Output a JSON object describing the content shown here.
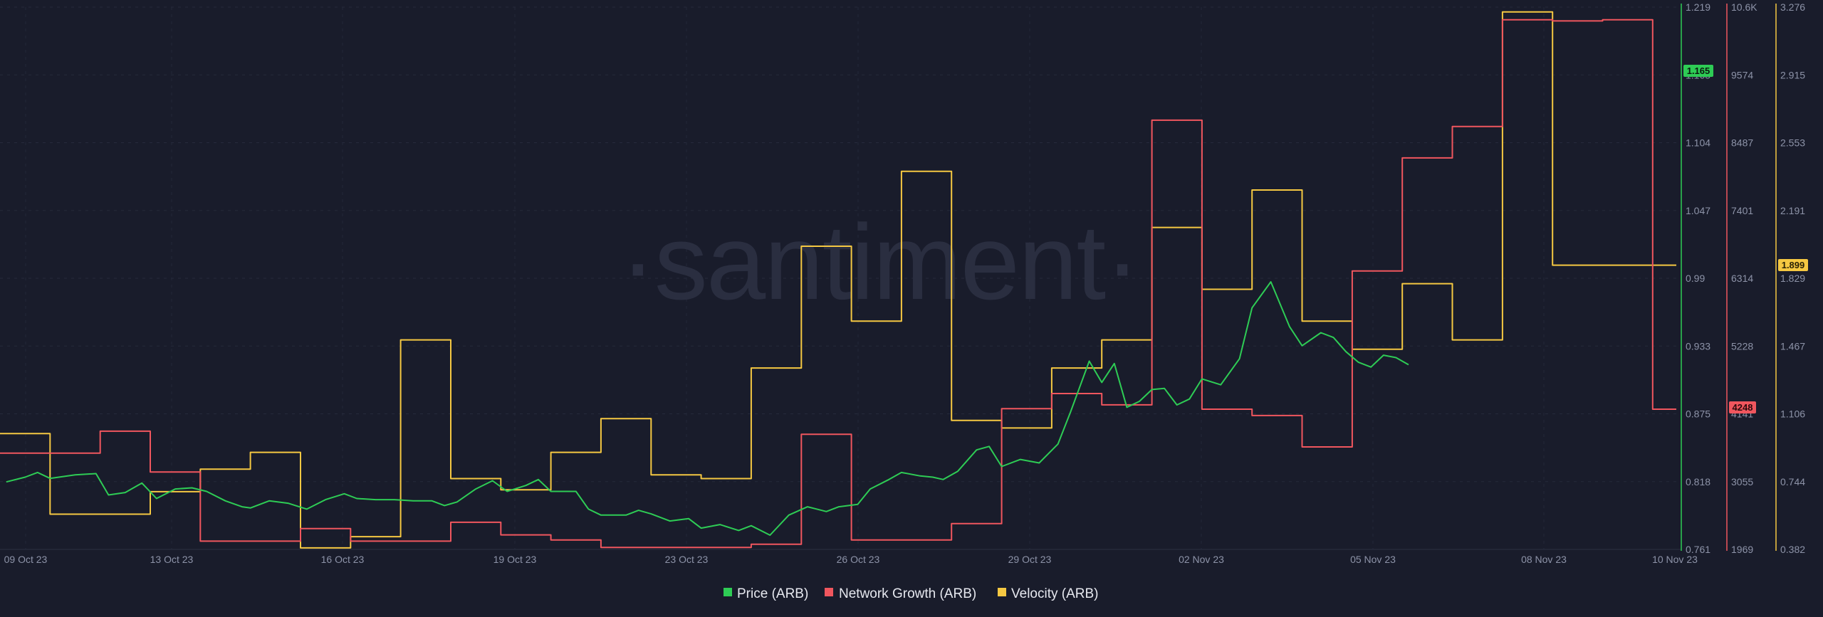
{
  "watermark": "·santiment·",
  "chart_data": {
    "type": "line",
    "x_tick_labels": [
      "09 Oct 23",
      "13 Oct 23",
      "16 Oct 23",
      "19 Oct 23",
      "23 Oct 23",
      "26 Oct 23",
      "29 Oct 23",
      "02 Nov 23",
      "05 Nov 23",
      "08 Nov 23",
      "10 Nov 23"
    ],
    "grid": true,
    "legend_position": "bottom-center",
    "x_range": [
      "2023-10-08",
      "2023-11-10"
    ],
    "axes": {
      "price": {
        "ticks": [
          "1.219",
          "1.165",
          "1.104",
          "1.047",
          "0.99",
          "0.933",
          "0.875",
          "0.818",
          "0.761"
        ],
        "min": 0.761,
        "max": 1.219,
        "color": "#2ecc55"
      },
      "network": {
        "ticks": [
          "10.6K",
          "9574",
          "8487",
          "7401",
          "6314",
          "5228",
          "4141",
          "3055",
          "1969"
        ],
        "min": 1969,
        "max": 10600,
        "color": "#f0565e"
      },
      "velocity": {
        "ticks": [
          "3.276",
          "2.915",
          "2.553",
          "2.191",
          "1.829",
          "1.467",
          "1.106",
          "0.744",
          "0.382"
        ],
        "min": 0.382,
        "max": 3.276,
        "color": "#f5c842"
      }
    },
    "last_values": {
      "price": "1.165",
      "network": "4248",
      "velocity": "1.899"
    },
    "series": [
      {
        "name": "Price (ARB)",
        "axis": "price",
        "color": "#2ecc55",
        "step": false,
        "points": [
          [
            "2023-10-08T03:00",
            0.818
          ],
          [
            "2023-10-08T12:00",
            0.822
          ],
          [
            "2023-10-08T18:00",
            0.826
          ],
          [
            "2023-10-09T00:00",
            0.821
          ],
          [
            "2023-10-09T12:00",
            0.824
          ],
          [
            "2023-10-09T22:00",
            0.825
          ],
          [
            "2023-10-10T04:00",
            0.807
          ],
          [
            "2023-10-10T12:00",
            0.809
          ],
          [
            "2023-10-10T20:00",
            0.817
          ],
          [
            "2023-10-11T03:00",
            0.804
          ],
          [
            "2023-10-11T12:00",
            0.812
          ],
          [
            "2023-10-11T20:00",
            0.813
          ],
          [
            "2023-10-12T03:00",
            0.81
          ],
          [
            "2023-10-12T12:00",
            0.802
          ],
          [
            "2023-10-12T20:00",
            0.797
          ],
          [
            "2023-10-13T00:00",
            0.796
          ],
          [
            "2023-10-13T09:00",
            0.802
          ],
          [
            "2023-10-13T18:00",
            0.8
          ],
          [
            "2023-10-14T03:00",
            0.795
          ],
          [
            "2023-10-14T12:00",
            0.803
          ],
          [
            "2023-10-14T21:00",
            0.808
          ],
          [
            "2023-10-15T03:00",
            0.804
          ],
          [
            "2023-10-15T12:00",
            0.803
          ],
          [
            "2023-10-15T21:00",
            0.803
          ],
          [
            "2023-10-16T06:00",
            0.802
          ],
          [
            "2023-10-16T15:00",
            0.802
          ],
          [
            "2023-10-16T21:00",
            0.798
          ],
          [
            "2023-10-17T03:00",
            0.801
          ],
          [
            "2023-10-17T12:00",
            0.812
          ],
          [
            "2023-10-17T20:00",
            0.819
          ],
          [
            "2023-10-18T03:00",
            0.81
          ],
          [
            "2023-10-18T12:00",
            0.815
          ],
          [
            "2023-10-18T18:00",
            0.82
          ],
          [
            "2023-10-19T00:00",
            0.81
          ],
          [
            "2023-10-19T12:00",
            0.81
          ],
          [
            "2023-10-19T18:00",
            0.795
          ],
          [
            "2023-10-20T00:00",
            0.79
          ],
          [
            "2023-10-20T12:00",
            0.79
          ],
          [
            "2023-10-20T18:00",
            0.794
          ],
          [
            "2023-10-21T00:00",
            0.791
          ],
          [
            "2023-10-21T09:00",
            0.785
          ],
          [
            "2023-10-21T18:00",
            0.787
          ],
          [
            "2023-10-22T00:00",
            0.779
          ],
          [
            "2023-10-22T09:00",
            0.782
          ],
          [
            "2023-10-22T18:00",
            0.777
          ],
          [
            "2023-10-23T00:00",
            0.781
          ],
          [
            "2023-10-23T09:00",
            0.773
          ],
          [
            "2023-10-23T18:00",
            0.79
          ],
          [
            "2023-10-24T03:00",
            0.797
          ],
          [
            "2023-10-24T12:00",
            0.793
          ],
          [
            "2023-10-24T18:00",
            0.797
          ],
          [
            "2023-10-25T03:00",
            0.799
          ],
          [
            "2023-10-25T09:00",
            0.812
          ],
          [
            "2023-10-25T18:00",
            0.82
          ],
          [
            "2023-10-26T00:00",
            0.826
          ],
          [
            "2023-10-26T09:00",
            0.823
          ],
          [
            "2023-10-26T15:00",
            0.822
          ],
          [
            "2023-10-26T20:00",
            0.82
          ],
          [
            "2023-10-27T03:00",
            0.827
          ],
          [
            "2023-10-27T12:00",
            0.845
          ],
          [
            "2023-10-27T18:00",
            0.848
          ],
          [
            "2023-10-28T00:00",
            0.831
          ],
          [
            "2023-10-28T09:00",
            0.837
          ],
          [
            "2023-10-28T18:00",
            0.834
          ],
          [
            "2023-10-29T03:00",
            0.85
          ],
          [
            "2023-10-29T09:00",
            0.877
          ],
          [
            "2023-10-29T18:00",
            0.92
          ],
          [
            "2023-10-30T00:00",
            0.902
          ],
          [
            "2023-10-30T06:00",
            0.918
          ],
          [
            "2023-10-30T12:00",
            0.881
          ],
          [
            "2023-10-30T18:00",
            0.886
          ],
          [
            "2023-10-31T00:00",
            0.896
          ],
          [
            "2023-10-31T06:00",
            0.897
          ],
          [
            "2023-10-31T12:00",
            0.883
          ],
          [
            "2023-10-31T18:00",
            0.888
          ],
          [
            "2023-11-01T00:00",
            0.905
          ],
          [
            "2023-11-01T09:00",
            0.9
          ],
          [
            "2023-11-01T18:00",
            0.922
          ],
          [
            "2023-11-02T00:00",
            0.965
          ],
          [
            "2023-11-02T09:00",
            0.987
          ],
          [
            "2023-11-02T18:00",
            0.949
          ],
          [
            "2023-11-03T00:00",
            0.933
          ],
          [
            "2023-11-03T09:00",
            0.944
          ],
          [
            "2023-11-03T15:00",
            0.94
          ],
          [
            "2023-11-03T21:00",
            0.928
          ],
          [
            "2023-11-04T03:00",
            0.919
          ],
          [
            "2023-11-04T09:00",
            0.915
          ],
          [
            "2023-11-04T15:00",
            0.925
          ],
          [
            "2023-11-04T21:00",
            0.923
          ],
          [
            "2023-11-05T03:00",
            0.917
          ]
        ]
      },
      {
        "name": "Network Growth (ARB)",
        "axis": "network",
        "color": "#f0565e",
        "step": true,
        "points": [
          [
            "2023-10-08",
            3500
          ],
          [
            "2023-10-09",
            3500
          ],
          [
            "2023-10-10",
            3850
          ],
          [
            "2023-10-11",
            3200
          ],
          [
            "2023-10-12",
            2100
          ],
          [
            "2023-10-13",
            2100
          ],
          [
            "2023-10-14",
            2300
          ],
          [
            "2023-10-15",
            2100
          ],
          [
            "2023-10-16",
            2100
          ],
          [
            "2023-10-17",
            2400
          ],
          [
            "2023-10-18",
            2200
          ],
          [
            "2023-10-19",
            2120
          ],
          [
            "2023-10-20",
            2000
          ],
          [
            "2023-10-21",
            2000
          ],
          [
            "2023-10-22",
            2000
          ],
          [
            "2023-10-23",
            2050
          ],
          [
            "2023-10-24",
            3800
          ],
          [
            "2023-10-25",
            2120
          ],
          [
            "2023-10-26",
            2120
          ],
          [
            "2023-10-27",
            2380
          ],
          [
            "2023-10-28",
            4210
          ],
          [
            "2023-10-29",
            4450
          ],
          [
            "2023-10-30",
            4270
          ],
          [
            "2023-10-31",
            8800
          ],
          [
            "2023-11-01",
            4200
          ],
          [
            "2023-11-02",
            4100
          ],
          [
            "2023-11-03",
            3600
          ],
          [
            "2023-11-04",
            6400
          ],
          [
            "2023-11-05",
            8200
          ],
          [
            "2023-11-06",
            8700
          ],
          [
            "2023-11-07",
            10400
          ],
          [
            "2023-11-08",
            10380
          ],
          [
            "2023-11-09",
            10400
          ],
          [
            "2023-11-10",
            4200
          ]
        ]
      },
      {
        "name": "Velocity (ARB)",
        "axis": "velocity",
        "color": "#f5c842",
        "step": true,
        "points": [
          [
            "2023-10-08",
            1.0
          ],
          [
            "2023-10-09",
            0.57
          ],
          [
            "2023-10-10",
            0.57
          ],
          [
            "2023-10-11",
            0.69
          ],
          [
            "2023-10-12",
            0.81
          ],
          [
            "2023-10-13",
            0.9
          ],
          [
            "2023-10-14",
            0.39
          ],
          [
            "2023-10-15",
            0.45
          ],
          [
            "2023-10-16",
            1.5
          ],
          [
            "2023-10-17",
            0.76
          ],
          [
            "2023-10-18",
            0.7
          ],
          [
            "2023-10-19",
            0.9
          ],
          [
            "2023-10-20",
            1.08
          ],
          [
            "2023-10-21",
            0.78
          ],
          [
            "2023-10-22",
            0.76
          ],
          [
            "2023-10-23",
            1.35
          ],
          [
            "2023-10-24",
            2.0
          ],
          [
            "2023-10-25",
            1.6
          ],
          [
            "2023-10-26",
            2.4
          ],
          [
            "2023-10-27",
            1.07
          ],
          [
            "2023-10-28",
            1.03
          ],
          [
            "2023-10-29",
            1.35
          ],
          [
            "2023-10-30",
            1.5
          ],
          [
            "2023-10-31",
            2.1
          ],
          [
            "2023-11-01",
            1.77
          ],
          [
            "2023-11-02",
            2.3
          ],
          [
            "2023-11-03",
            1.6
          ],
          [
            "2023-11-04",
            1.45
          ],
          [
            "2023-11-05",
            1.8
          ],
          [
            "2023-11-06",
            1.5
          ],
          [
            "2023-11-07",
            3.25
          ],
          [
            "2023-11-08",
            1.899
          ],
          [
            "2023-11-09",
            1.899
          ],
          [
            "2023-11-10",
            1.899
          ]
        ]
      }
    ]
  },
  "legend": [
    {
      "label": "Price (ARB)",
      "color": "#2ecc55"
    },
    {
      "label": "Network Growth (ARB)",
      "color": "#f0565e"
    },
    {
      "label": "Velocity (ARB)",
      "color": "#f5c842"
    }
  ]
}
